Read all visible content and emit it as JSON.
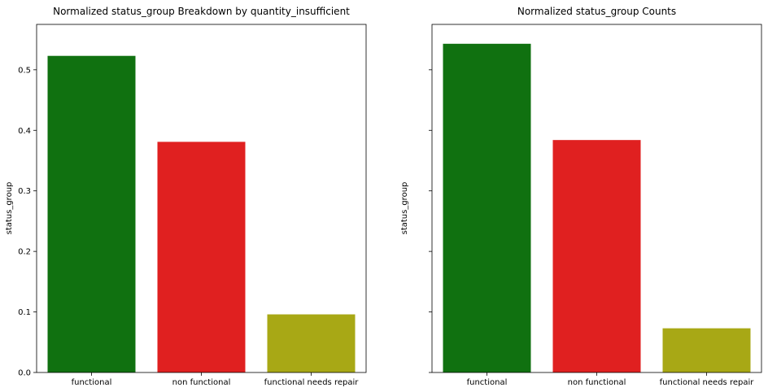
{
  "chart_data": [
    {
      "type": "bar",
      "title": "Normalized status_group Breakdown by quantity_insufficient",
      "xlabel": "",
      "ylabel": "status_group",
      "categories": [
        "functional",
        "non functional",
        "functional needs repair"
      ],
      "values": [
        0.523,
        0.381,
        0.096
      ],
      "colors": [
        "#107110",
        "#e02020",
        "#a8a815"
      ],
      "ylim": [
        0,
        0.575
      ],
      "yticks": [
        0.0,
        0.1,
        0.2,
        0.3,
        0.4,
        0.5
      ],
      "ytick_labels": [
        "0.0",
        "0.1",
        "0.2",
        "0.3",
        "0.4",
        "0.5"
      ],
      "grid": false,
      "legend": "none"
    },
    {
      "type": "bar",
      "title": "Normalized status_group Counts",
      "xlabel": "",
      "ylabel": "status_group",
      "categories": [
        "functional",
        "non functional",
        "functional needs repair"
      ],
      "values": [
        0.543,
        0.384,
        0.073
      ],
      "colors": [
        "#107110",
        "#e02020",
        "#a8a815"
      ],
      "ylim": [
        0,
        0.575
      ],
      "yticks": [
        0.0,
        0.1,
        0.2,
        0.3,
        0.4,
        0.5
      ],
      "ytick_labels": [],
      "grid": false,
      "legend": "none"
    }
  ]
}
